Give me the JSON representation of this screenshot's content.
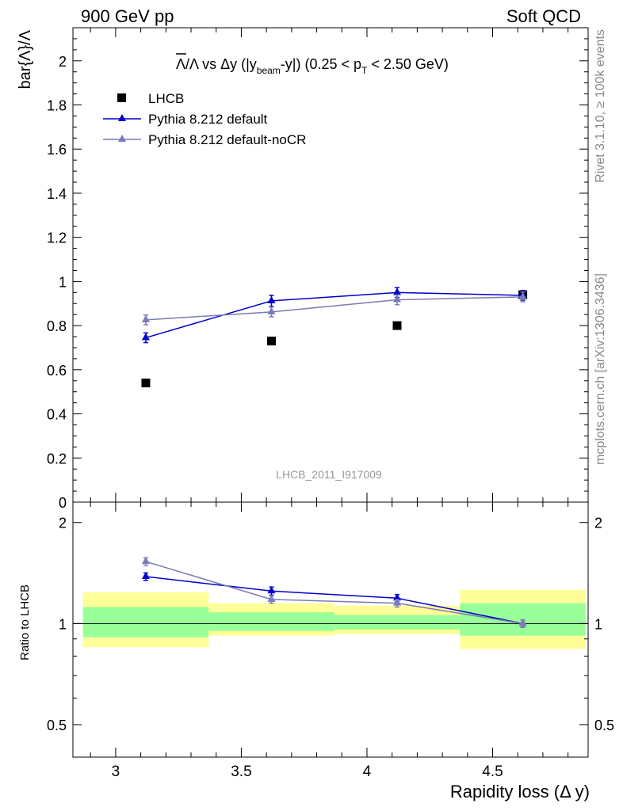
{
  "header": {
    "left": "900 GeV pp",
    "right": "Soft QCD"
  },
  "side_text": {
    "rivet": "Rivet 3.1.10, ≥ 100k events",
    "source": "mcplots.cern.ch [arXiv:1306.3436]"
  },
  "chart_data": [
    {
      "type": "scatter",
      "panel": "main",
      "title": {
        "lambda_bar": "Λ",
        "rest": "/Λ vs Δy (|y",
        "sub1": "beam",
        "mid": "-y|) (0.25 < p",
        "sub2": "T",
        "end": " < 2.50 GeV)"
      },
      "ylabel": "bar{Λ}/Λ",
      "xlabel": "Rapidity loss (Δ y)",
      "xlim": [
        2.83,
        4.88
      ],
      "ylim": [
        0,
        2.15
      ],
      "x_ticks": [
        "3",
        "3.5",
        "4",
        "4.5"
      ],
      "x_tick_values": [
        3,
        3.5,
        4,
        4.5
      ],
      "y_ticks": [
        "0",
        "0.2",
        "0.4",
        "0.6",
        "0.8",
        "1",
        "1.2",
        "1.4",
        "1.6",
        "1.8",
        "2"
      ],
      "y_tick_values": [
        0,
        0.2,
        0.4,
        0.6,
        0.8,
        1,
        1.2,
        1.4,
        1.6,
        1.8,
        2
      ],
      "watermark": "LHCB_2011_I917009",
      "legend_position": "top-left",
      "series": [
        {
          "name": "LHCB",
          "marker": "square",
          "color": "#000000",
          "x": [
            3.12,
            3.62,
            4.12,
            4.62
          ],
          "values": [
            0.54,
            0.73,
            0.8,
            0.94
          ],
          "errors": [
            0,
            0,
            0,
            0
          ]
        },
        {
          "name": "Pythia 8.212 default",
          "marker": "triangle",
          "color": "#0000cc",
          "x": [
            3.12,
            3.62,
            4.12,
            4.62
          ],
          "values": [
            0.745,
            0.912,
            0.95,
            0.937
          ],
          "errors": [
            0.022,
            0.025,
            0.022,
            0.022
          ]
        },
        {
          "name": "Pythia 8.212 default-noCR",
          "marker": "triangle",
          "color": "#7a7ab8",
          "x": [
            3.12,
            3.62,
            4.12,
            4.62
          ],
          "values": [
            0.826,
            0.862,
            0.917,
            0.93
          ],
          "errors": [
            0.022,
            0.022,
            0.022,
            0.022
          ]
        }
      ]
    },
    {
      "type": "line",
      "panel": "ratio",
      "ylabel": "Ratio to LHCB",
      "y_scale": "log",
      "xlim": [
        2.83,
        4.88
      ],
      "ylim": [
        0.4,
        2.3
      ],
      "x_ticks": [
        "3",
        "3.5",
        "4",
        "4.5"
      ],
      "x_tick_values": [
        3,
        3.5,
        4,
        4.5
      ],
      "y_ticks": [
        "0.5",
        "1",
        "2"
      ],
      "y_tick_values": [
        0.5,
        1,
        2
      ],
      "bands": [
        {
          "x0": 2.87,
          "x1": 3.37,
          "yellow": [
            0.85,
            1.24
          ],
          "green": [
            0.91,
            1.12
          ]
        },
        {
          "x0": 3.37,
          "x1": 3.87,
          "yellow": [
            0.92,
            1.15
          ],
          "green": [
            0.95,
            1.08
          ]
        },
        {
          "x0": 3.87,
          "x1": 4.37,
          "yellow": [
            0.93,
            1.13
          ],
          "green": [
            0.96,
            1.06
          ]
        },
        {
          "x0": 4.37,
          "x1": 4.87,
          "yellow": [
            0.84,
            1.26
          ],
          "green": [
            0.92,
            1.15
          ]
        }
      ],
      "series": [
        {
          "name": "Pythia 8.212 default",
          "color": "#0000cc",
          "x": [
            3.12,
            3.62,
            4.12,
            4.62
          ],
          "values": [
            1.38,
            1.25,
            1.19,
            1.0
          ],
          "errors": [
            0.035,
            0.035,
            0.03,
            0.025
          ]
        },
        {
          "name": "Pythia 8.212 default-noCR",
          "color": "#7a7ab8",
          "x": [
            3.12,
            3.62,
            4.12,
            4.62
          ],
          "values": [
            1.53,
            1.18,
            1.15,
            1.0
          ],
          "errors": [
            0.04,
            0.03,
            0.03,
            0.025
          ]
        }
      ]
    }
  ]
}
